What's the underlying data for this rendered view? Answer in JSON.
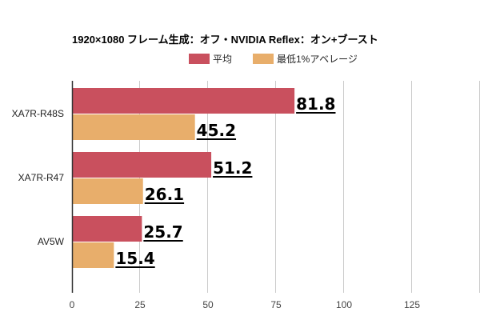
{
  "chart_data": {
    "type": "bar",
    "orientation": "horizontal",
    "title": "1920×1080 フレーム生成：オフ・NVIDIA Reflex：オン+ブースト",
    "xlabel": "",
    "ylabel": "",
    "categories": [
      "XA7R-R48S",
      "XA7R-R47",
      "AV5W"
    ],
    "series": [
      {
        "name": "平均",
        "color": "#c9505e",
        "values": [
          81.8,
          51.2,
          25.7
        ]
      },
      {
        "name": "最低1%アベレージ",
        "color": "#e8ae6b",
        "values": [
          45.2,
          26.1,
          15.4
        ]
      }
    ],
    "xlim": [
      0,
      150
    ],
    "xticks": [
      0,
      25,
      50,
      75,
      100,
      125,
      150
    ],
    "xtick_labels": [
      "0",
      "25",
      "50",
      "75",
      "100",
      "125",
      ""
    ],
    "grid": true,
    "legend_position": "top-right",
    "data_labels": true
  }
}
